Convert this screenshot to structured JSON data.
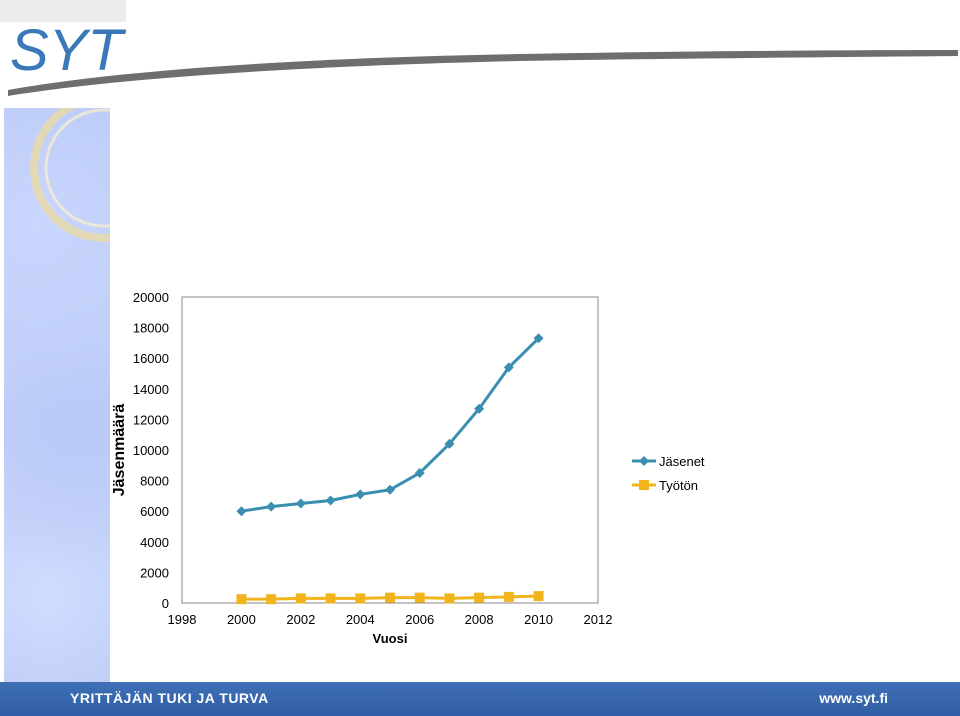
{
  "logo": {
    "text": "SYT"
  },
  "footer": {
    "tagline": "YRITTÄJÄN TUKI  JA TURVA",
    "url": "www.syt.fi"
  },
  "colors": {
    "members": "#3a8fb0",
    "unemployed": "#f2b41c",
    "footer": "#2f5ea6",
    "logo": "#3a78b8"
  },
  "chart_data": {
    "type": "line",
    "xlabel": "Vuosi",
    "ylabel": "Jäsenmäärä",
    "xlim": [
      1998,
      2012
    ],
    "ylim": [
      0,
      20000
    ],
    "xticks": [
      1998,
      2000,
      2002,
      2004,
      2006,
      2008,
      2010,
      2012
    ],
    "yticks": [
      0,
      2000,
      4000,
      6000,
      8000,
      10000,
      12000,
      14000,
      16000,
      18000,
      20000
    ],
    "legend_position": "right",
    "series": [
      {
        "name": "Jäsenet",
        "marker": "diamond",
        "x": [
          2000,
          2001,
          2002,
          2003,
          2004,
          2005,
          2006,
          2007,
          2008,
          2009,
          2010
        ],
        "y": [
          6000,
          6300,
          6500,
          6700,
          7100,
          7400,
          8500,
          10400,
          12700,
          15400,
          17300
        ]
      },
      {
        "name": "Työtön",
        "marker": "square",
        "x": [
          2000,
          2001,
          2002,
          2003,
          2004,
          2005,
          2006,
          2007,
          2008,
          2009,
          2010
        ],
        "y": [
          250,
          250,
          300,
          300,
          300,
          350,
          350,
          300,
          350,
          400,
          450
        ]
      }
    ]
  }
}
